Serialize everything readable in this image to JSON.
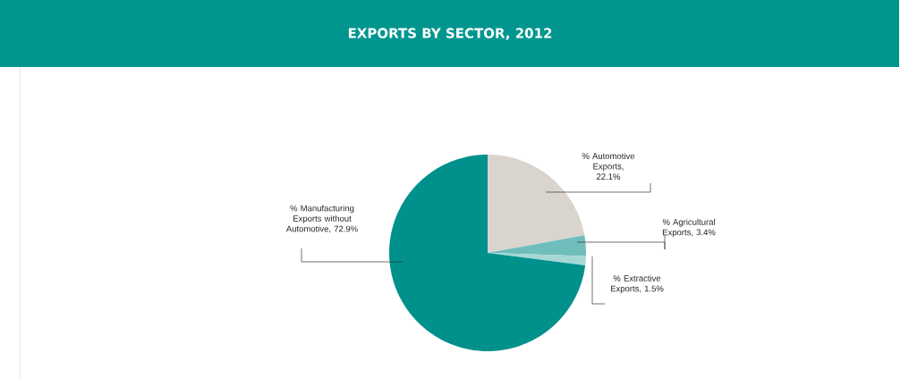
{
  "chart_data": {
    "type": "pie",
    "title": "EXPORTS BY SECTOR, 2012",
    "categories": [
      null,
      null,
      null,
      null
    ],
    "values": [
      22.1,
      3.4,
      1.5,
      72.9
    ],
    "value_labels": [
      "% Automotive Exports, 22.1%",
      "% Agricultural Exports, 3.4%",
      "% Extractive Exports, 1.5%",
      "% Manufacturing Exports without Automotive, 72.9%"
    ],
    "colors": [
      "#d9d4ce",
      "#6fbebc",
      "#a5d7d5",
      "#00918c"
    ]
  }
}
